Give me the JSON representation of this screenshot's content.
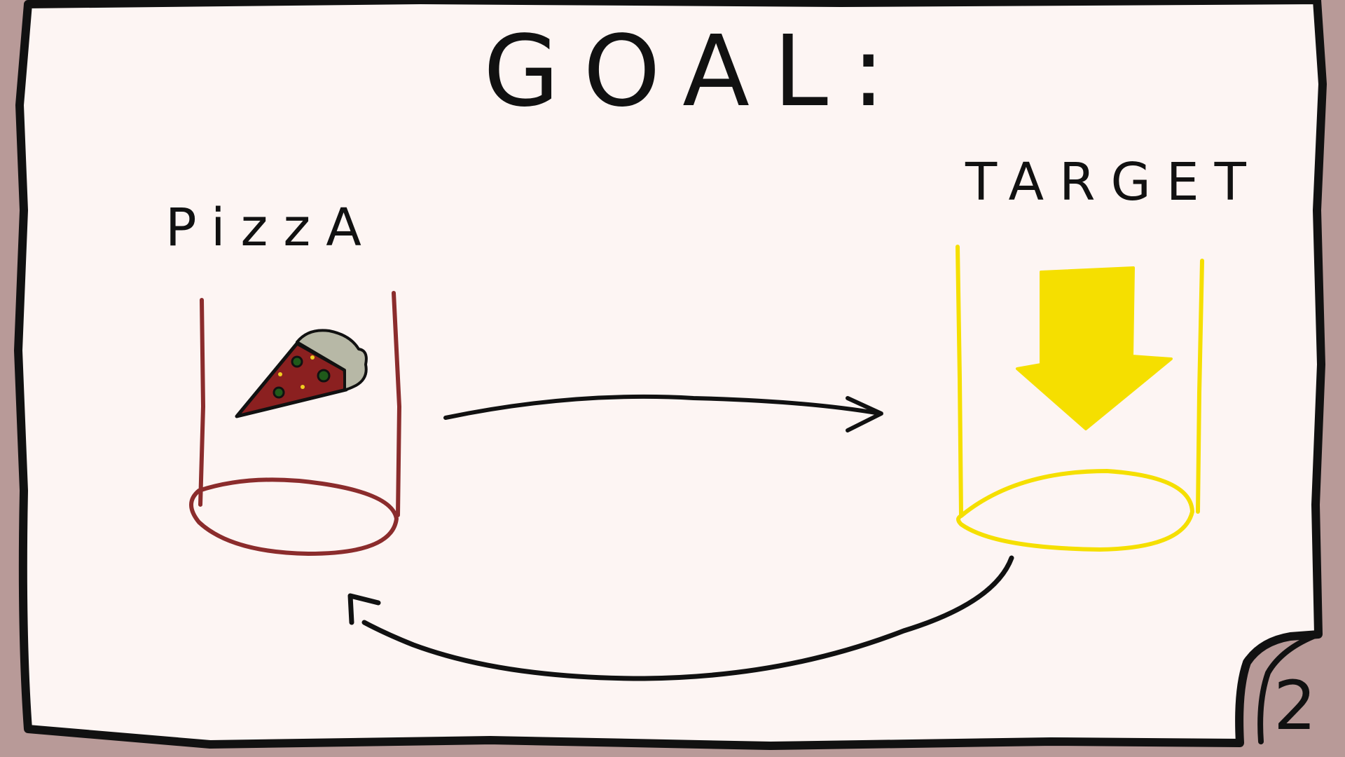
{
  "page": {
    "title": "GOAL:",
    "page_number": "2"
  },
  "source": {
    "label": "PizzA",
    "item_icon": "pizza-slice-icon",
    "tube_color": "#8b2c2c"
  },
  "target": {
    "label": "TARGET",
    "arrow_icon": "down-arrow-icon",
    "tube_color": "#f5df00"
  },
  "colors": {
    "background_border": "#b89a98",
    "paper": "#fdf5f3",
    "ink": "#111111",
    "pizza_sauce": "#8b2020",
    "pizza_crust": "#b7b8a6",
    "pizza_olive": "#1f5a1a",
    "pizza_cheese": "#f0d020"
  }
}
